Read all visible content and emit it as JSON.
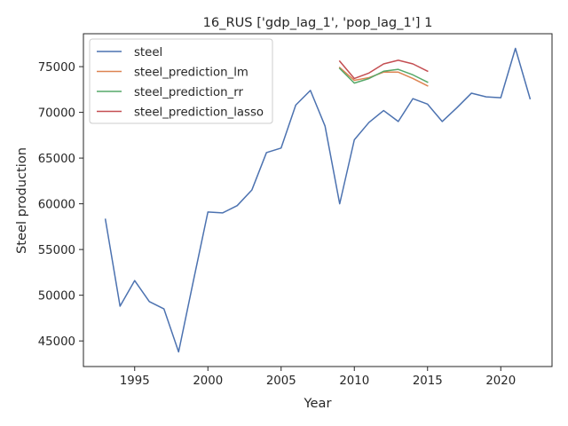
{
  "chart_data": {
    "type": "line",
    "title": "16_RUS ['gdp_lag_1', 'pop_lag_1'] 1",
    "xlabel": "Year",
    "ylabel": "Steel production",
    "xlim": [
      1991.5,
      2023.5
    ],
    "ylim": [
      42200,
      78600
    ],
    "xticks": [
      1995,
      2000,
      2005,
      2010,
      2015,
      2020
    ],
    "yticks": [
      45000,
      50000,
      55000,
      60000,
      65000,
      70000,
      75000
    ],
    "grid": false,
    "legend_position": "top-left",
    "series": [
      {
        "name": "steel",
        "color": "#4c72b0",
        "x": [
          1993,
          1994,
          1995,
          1996,
          1997,
          1998,
          1999,
          2000,
          2001,
          2002,
          2003,
          2004,
          2005,
          2006,
          2007,
          2008,
          2009,
          2010,
          2011,
          2012,
          2013,
          2014,
          2015,
          2016,
          2017,
          2018,
          2019,
          2020,
          2021,
          2022
        ],
        "y": [
          58300,
          48800,
          51600,
          49300,
          48500,
          43800,
          51500,
          59100,
          59000,
          59800,
          61500,
          65600,
          66100,
          70800,
          72400,
          68500,
          60000,
          67000,
          68900,
          70200,
          69000,
          71500,
          70900,
          69000,
          70500,
          72100,
          71700,
          71600,
          77000,
          71500
        ]
      },
      {
        "name": "steel_prediction_lm",
        "color": "#dd8452",
        "x": [
          2009,
          2010,
          2011,
          2012,
          2013,
          2014,
          2015
        ],
        "y": [
          74900,
          73500,
          73800,
          74400,
          74400,
          73700,
          72900
        ]
      },
      {
        "name": "steel_prediction_rr",
        "color": "#55a868",
        "x": [
          2009,
          2010,
          2011,
          2012,
          2013,
          2014,
          2015
        ],
        "y": [
          74800,
          73200,
          73700,
          74500,
          74700,
          74100,
          73300
        ]
      },
      {
        "name": "steel_prediction_lasso",
        "color": "#c44e52",
        "x": [
          2009,
          2010,
          2011,
          2012,
          2013,
          2014,
          2015
        ],
        "y": [
          75600,
          73700,
          74300,
          75300,
          75700,
          75300,
          74500
        ]
      }
    ]
  }
}
